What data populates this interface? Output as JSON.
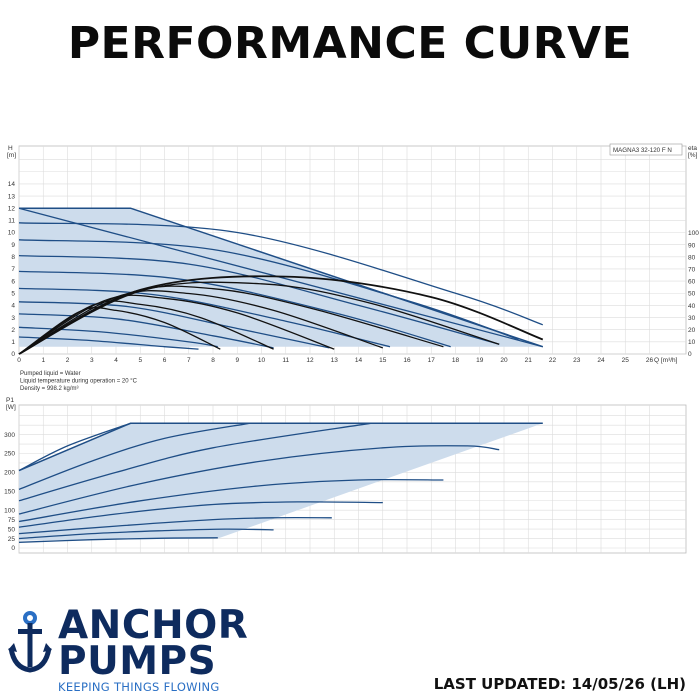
{
  "page": {
    "title": "PERFORMANCE CURVE",
    "last_updated": "LAST UPDATED: 14/05/26 (LH)"
  },
  "logo": {
    "line1": "ANCHOR",
    "line2": "PUMPS",
    "tagline": "KEEPING THINGS FLOWING",
    "icon": "anchor-icon"
  },
  "colors": {
    "fill": "#cddcec",
    "curve": "#1f4e86",
    "eta": "#111111",
    "grid": "#dcdcdc",
    "brand_navy": "#0e2b5e",
    "brand_blue": "#2a6fc4"
  },
  "chart_data": [
    {
      "type": "line",
      "model_label": "MAGNA3 32-120 F N",
      "ylabel": "H",
      "yunit": "[m]",
      "y2label": "eta",
      "y2unit": "[%]",
      "xlabel": "Q [m³/h]",
      "xlim": [
        0,
        27
      ],
      "ylim": [
        0,
        15
      ],
      "y2lim": [
        0,
        130
      ],
      "x_ticks": [
        0,
        1,
        2,
        3,
        4,
        5,
        6,
        7,
        8,
        9,
        10,
        11,
        12,
        13,
        14,
        15,
        16,
        17,
        18,
        19,
        20,
        21,
        22,
        23,
        24,
        25,
        26
      ],
      "y_ticks": [
        0,
        1,
        2,
        3,
        4,
        5,
        6,
        7,
        8,
        9,
        10,
        11,
        12,
        13,
        14
      ],
      "y2_ticks": [
        0,
        10,
        20,
        30,
        40,
        50,
        60,
        70,
        80,
        90,
        100
      ],
      "notes": [
        "Pumped liquid = Water",
        "Liquid temperature during operation = 20 °C",
        "Density = 998.2 kg/m³"
      ],
      "envelope": [
        [
          0,
          12
        ],
        [
          4.6,
          12
        ],
        [
          21.6,
          0.6
        ],
        [
          0,
          0.6
        ]
      ],
      "head_curves": [
        {
          "h0": 12.0,
          "x": [
            0,
            21.6
          ],
          "y": [
            12.0,
            0.6
          ]
        },
        {
          "h0": 10.8,
          "x": [
            0,
            9,
            18,
            21.6
          ],
          "y": [
            10.8,
            10.0,
            5.0,
            2.4
          ]
        },
        {
          "h0": 9.4,
          "x": [
            0,
            8,
            16,
            20.6
          ],
          "y": [
            9.4,
            8.6,
            4.4,
            1.2
          ]
        },
        {
          "h0": 8.1,
          "x": [
            0,
            7,
            14,
            19.8
          ],
          "y": [
            8.1,
            7.4,
            4.0,
            0.8
          ]
        },
        {
          "h0": 6.8,
          "x": [
            0,
            6.5,
            13,
            17.8
          ],
          "y": [
            6.8,
            6.2,
            3.4,
            0.6
          ]
        },
        {
          "h0": 5.4,
          "x": [
            0,
            5.5,
            11,
            15.3
          ],
          "y": [
            5.4,
            4.9,
            2.7,
            0.6
          ]
        },
        {
          "h0": 4.3,
          "x": [
            0,
            4.5,
            9,
            12.8
          ],
          "y": [
            4.3,
            3.9,
            2.1,
            0.5
          ]
        },
        {
          "h0": 3.3,
          "x": [
            0,
            4,
            8,
            10.5
          ],
          "y": [
            3.3,
            2.9,
            1.5,
            0.5
          ]
        },
        {
          "h0": 2.2,
          "x": [
            0,
            3.5,
            7,
            8.2
          ],
          "y": [
            2.2,
            1.8,
            1.0,
            0.6
          ]
        },
        {
          "h0": 1.4,
          "x": [
            0,
            3,
            6,
            7.4
          ],
          "y": [
            1.4,
            1.1,
            0.6,
            0.4
          ]
        }
      ],
      "efficiency_curves": [
        {
          "x": [
            0,
            5,
            11,
            17,
            21.6
          ],
          "y": [
            0,
            53,
            64,
            47,
            12
          ]
        },
        {
          "x": [
            0,
            5,
            10,
            14.5,
            19.8
          ],
          "y": [
            0,
            52,
            58,
            42,
            8
          ]
        },
        {
          "x": [
            0,
            4.5,
            8,
            12,
            17.5
          ],
          "y": [
            0,
            50,
            54,
            38,
            6
          ]
        },
        {
          "x": [
            0,
            4,
            7,
            10.5,
            15
          ],
          "y": [
            0,
            47,
            50,
            36,
            5
          ]
        },
        {
          "x": [
            0,
            3.5,
            6,
            9,
            13
          ],
          "y": [
            0,
            44,
            46,
            34,
            4
          ]
        },
        {
          "x": [
            0,
            3,
            5,
            7.5,
            10.5
          ],
          "y": [
            0,
            40,
            41,
            30,
            4
          ]
        },
        {
          "x": [
            0,
            2.5,
            4,
            6,
            8.3
          ],
          "y": [
            0,
            35,
            36,
            26,
            4
          ]
        }
      ]
    },
    {
      "type": "line",
      "ylabel": "P1",
      "yunit": "[W]",
      "xlim": [
        0,
        27
      ],
      "ylim": [
        0,
        360
      ],
      "y_ticks": [
        0,
        25,
        50,
        75,
        100,
        150,
        200,
        250,
        300
      ],
      "envelope": [
        [
          0,
          205
        ],
        [
          4.6,
          330
        ],
        [
          21.6,
          330
        ],
        [
          8.2,
          25
        ],
        [
          0,
          20
        ]
      ],
      "power_curves": [
        {
          "x": [
            0,
            2,
            4.6
          ],
          "y": [
            205,
            270,
            330
          ]
        },
        {
          "x": [
            0,
            3,
            6,
            9.5
          ],
          "y": [
            155,
            230,
            290,
            330
          ]
        },
        {
          "x": [
            0,
            4,
            8,
            14.5
          ],
          "y": [
            125,
            200,
            265,
            330
          ]
        },
        {
          "x": [
            0,
            5,
            10,
            15,
            18.5,
            19.8
          ],
          "y": [
            90,
            170,
            230,
            265,
            270,
            260
          ]
        },
        {
          "x": [
            0,
            5,
            10,
            14,
            17.5
          ],
          "y": [
            70,
            125,
            165,
            180,
            180
          ]
        },
        {
          "x": [
            0,
            4,
            8,
            11.5,
            15
          ],
          "y": [
            55,
            90,
            115,
            122,
            120
          ]
        },
        {
          "x": [
            0,
            4,
            8,
            10.5,
            12.9
          ],
          "y": [
            38,
            58,
            75,
            80,
            80
          ]
        },
        {
          "x": [
            0,
            3,
            6,
            8.5,
            10.5
          ],
          "y": [
            25,
            38,
            46,
            50,
            48
          ]
        },
        {
          "x": [
            0,
            3,
            6,
            8.2
          ],
          "y": [
            15,
            22,
            26,
            27
          ]
        }
      ]
    }
  ]
}
